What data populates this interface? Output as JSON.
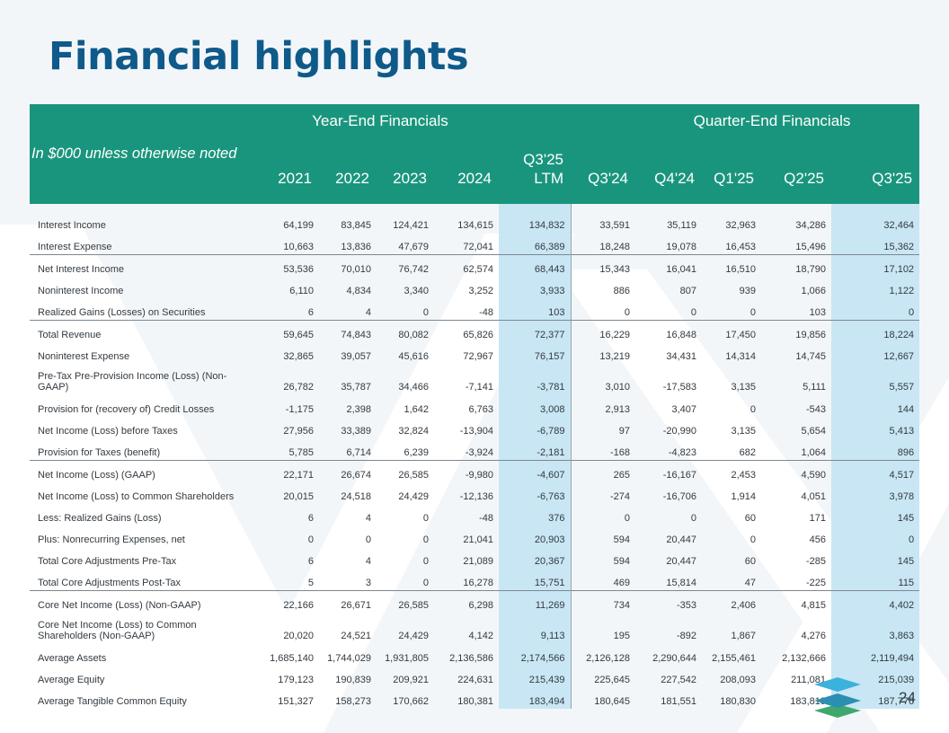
{
  "title": "Financial highlights",
  "page_number": "24",
  "colors": {
    "header_bg": "#1a957d",
    "title": "#0e5a8a",
    "highlight": "#c9e6f4"
  },
  "table": {
    "note": "In $000 unless otherwise noted",
    "group_headers": [
      "Year-End Financials",
      "Quarter-End Financials"
    ],
    "columns": [
      "2021",
      "2022",
      "2023",
      "2024",
      "Q3'25",
      "LTM",
      "Q3'24",
      "Q4'24",
      "Q1'25",
      "Q2'25",
      "Q3'25"
    ],
    "rows": [
      {
        "label": "Interest Income",
        "values": [
          "64,199",
          "83,845",
          "124,421",
          "134,615",
          "134,832",
          "33,591",
          "35,119",
          "32,963",
          "34,286",
          "32,464"
        ]
      },
      {
        "label": "Interest Expense",
        "values": [
          "10,663",
          "13,836",
          "47,679",
          "72,041",
          "66,389",
          "18,248",
          "19,078",
          "16,453",
          "15,496",
          "15,362"
        ]
      },
      {
        "label": "Net Interest Income",
        "values": [
          "53,536",
          "70,010",
          "76,742",
          "62,574",
          "68,443",
          "15,343",
          "16,041",
          "16,510",
          "18,790",
          "17,102"
        ]
      },
      {
        "label": "Noninterest Income",
        "values": [
          "6,110",
          "4,834",
          "3,340",
          "3,252",
          "3,933",
          "886",
          "807",
          "939",
          "1,066",
          "1,122"
        ]
      },
      {
        "label": "Realized Gains (Losses) on Securities",
        "values": [
          "6",
          "4",
          "0",
          "-48",
          "103",
          "0",
          "0",
          "0",
          "103",
          "0"
        ]
      },
      {
        "label": "Total Revenue",
        "values": [
          "59,645",
          "74,843",
          "80,082",
          "65,826",
          "72,377",
          "16,229",
          "16,848",
          "17,450",
          "19,856",
          "18,224"
        ]
      },
      {
        "label": "Noninterest Expense",
        "values": [
          "32,865",
          "39,057",
          "45,616",
          "72,967",
          "76,157",
          "13,219",
          "34,431",
          "14,314",
          "14,745",
          "12,667"
        ]
      },
      {
        "label_lines": [
          "Pre-Tax Pre-Provision Income (Loss) (Non-",
          "GAAP)"
        ],
        "values": [
          "26,782",
          "35,787",
          "34,466",
          "-7,141",
          "-3,781",
          "3,010",
          "-17,583",
          "3,135",
          "5,111",
          "5,557"
        ]
      },
      {
        "label": "Provision for (recovery of) Credit Losses",
        "values": [
          "-1,175",
          "2,398",
          "1,642",
          "6,763",
          "3,008",
          "2,913",
          "3,407",
          "0",
          "-543",
          "144"
        ]
      },
      {
        "label": "Net Income (Loss) before Taxes",
        "values": [
          "27,956",
          "33,389",
          "32,824",
          "-13,904",
          "-6,789",
          "97",
          "-20,990",
          "3,135",
          "5,654",
          "5,413"
        ]
      },
      {
        "label": "Provision for Taxes (benefit)",
        "values": [
          "5,785",
          "6,714",
          "6,239",
          "-3,924",
          "-2,181",
          "-168",
          "-4,823",
          "682",
          "1,064",
          "896"
        ]
      },
      {
        "label": "Net Income (Loss)  (GAAP)",
        "values": [
          "22,171",
          "26,674",
          "26,585",
          "-9,980",
          "-4,607",
          "265",
          "-16,167",
          "2,453",
          "4,590",
          "4,517"
        ]
      },
      {
        "label": "Net Income (Loss) to Common Shareholders",
        "values": [
          "20,015",
          "24,518",
          "24,429",
          "-12,136",
          "-6,763",
          "-274",
          "-16,706",
          "1,914",
          "4,051",
          "3,978"
        ]
      },
      {
        "label": "Less: Realized Gains (Loss)",
        "values": [
          "6",
          "4",
          "0",
          "-48",
          "376",
          "0",
          "0",
          "60",
          "171",
          "145"
        ]
      },
      {
        "label": "Plus: Nonrecurring Expenses, net",
        "values": [
          "0",
          "0",
          "0",
          "21,041",
          "20,903",
          "594",
          "20,447",
          "0",
          "456",
          "0"
        ]
      },
      {
        "label": "Total Core Adjustments Pre-Tax",
        "values": [
          "6",
          "4",
          "0",
          "21,089",
          "20,367",
          "594",
          "20,447",
          "60",
          "-285",
          "145"
        ]
      },
      {
        "label": "Total Core Adjustments Post-Tax",
        "values": [
          "5",
          "3",
          "0",
          "16,278",
          "15,751",
          "469",
          "15,814",
          "47",
          "-225",
          "115"
        ]
      },
      {
        "label": "Core Net Income (Loss) (Non-GAAP)",
        "values": [
          "22,166",
          "26,671",
          "26,585",
          "6,298",
          "11,269",
          "734",
          "-353",
          "2,406",
          "4,815",
          "4,402"
        ]
      },
      {
        "label_lines": [
          "Core Net Income (Loss) to Common",
          "Shareholders (Non-GAAP)"
        ],
        "values": [
          "20,020",
          "24,521",
          "24,429",
          "4,142",
          "9,113",
          "195",
          "-892",
          "1,867",
          "4,276",
          "3,863"
        ]
      },
      {
        "label": "Average Assets",
        "values": [
          "1,685,140",
          "1,744,029",
          "1,931,805",
          "2,136,586",
          "2,174,566",
          "2,126,128",
          "2,290,644",
          "2,155,461",
          "2,132,666",
          "2,119,494"
        ]
      },
      {
        "label": "Average Equity",
        "values": [
          "179,123",
          "190,839",
          "209,921",
          "224,631",
          "215,439",
          "225,645",
          "227,542",
          "208,093",
          "211,081",
          "215,039"
        ]
      },
      {
        "label": "Average Tangible Common Equity",
        "values": [
          "151,327",
          "158,273",
          "170,662",
          "180,381",
          "183,494",
          "180,645",
          "181,551",
          "180,830",
          "183,819",
          "187,776"
        ]
      }
    ]
  }
}
